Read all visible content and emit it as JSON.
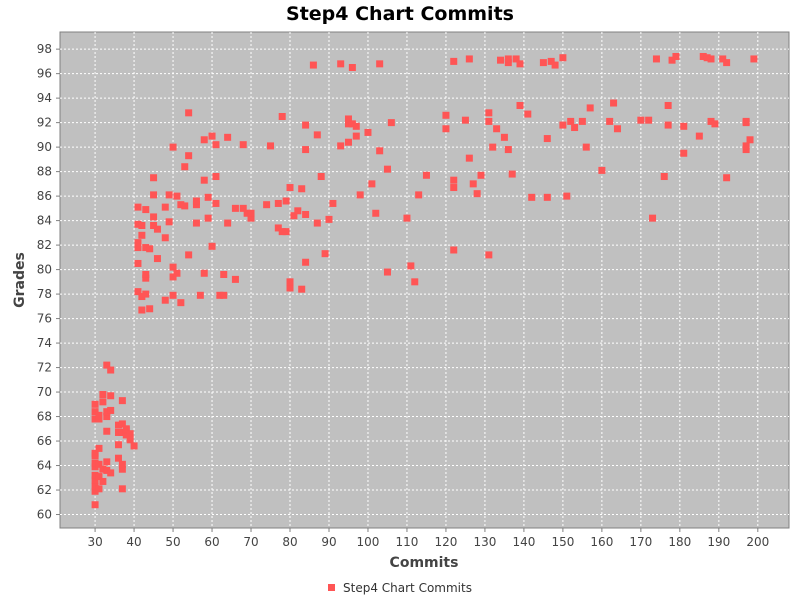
{
  "chart_data": {
    "type": "scatter",
    "title": "Step4 Chart Commits",
    "xlabel": "Commits",
    "ylabel": "Grades",
    "xlim": [
      21,
      208
    ],
    "ylim": [
      58.9,
      99.4
    ],
    "x_ticks": [
      30,
      40,
      50,
      60,
      70,
      80,
      90,
      100,
      110,
      120,
      130,
      140,
      150,
      160,
      170,
      180,
      190,
      200
    ],
    "y_ticks": [
      60,
      62,
      64,
      66,
      68,
      70,
      72,
      74,
      76,
      78,
      80,
      82,
      84,
      86,
      88,
      90,
      92,
      94,
      96,
      98
    ],
    "grid": true,
    "legend_position": "bottom",
    "colors": {
      "marker": "#ff5555",
      "plot_bg": "#c0c0c0",
      "grid": "#ffffff"
    },
    "series": [
      {
        "name": "Step4 Chart Commits",
        "points": [
          [
            30,
            60.8
          ],
          [
            30,
            61.9
          ],
          [
            30,
            62.3
          ],
          [
            30,
            62.8
          ],
          [
            30,
            63.2
          ],
          [
            30,
            63.9
          ],
          [
            30,
            64.2
          ],
          [
            30,
            64.8
          ],
          [
            30,
            65.0
          ],
          [
            30,
            67.8
          ],
          [
            30,
            68.4
          ],
          [
            30,
            69.0
          ],
          [
            31,
            62.1
          ],
          [
            31,
            63.1
          ],
          [
            31,
            64.1
          ],
          [
            31,
            65.4
          ],
          [
            31,
            67.8
          ],
          [
            31,
            68.1
          ],
          [
            32,
            62.7
          ],
          [
            32,
            63.7
          ],
          [
            32,
            69.2
          ],
          [
            32,
            69.8
          ],
          [
            33,
            63.6
          ],
          [
            33,
            64.3
          ],
          [
            33,
            66.8
          ],
          [
            33,
            68.0
          ],
          [
            33,
            68.4
          ],
          [
            33,
            72.2
          ],
          [
            34,
            63.4
          ],
          [
            34,
            68.5
          ],
          [
            34,
            69.7
          ],
          [
            34,
            71.8
          ],
          [
            36,
            64.6
          ],
          [
            36,
            65.7
          ],
          [
            36,
            66.7
          ],
          [
            36,
            67.3
          ],
          [
            37,
            62.1
          ],
          [
            37,
            63.7
          ],
          [
            37,
            64.1
          ],
          [
            37,
            66.7
          ],
          [
            37,
            67.4
          ],
          [
            37,
            69.3
          ],
          [
            38,
            66.5
          ],
          [
            38,
            66.9
          ],
          [
            38,
            67.0
          ],
          [
            39,
            66.1
          ],
          [
            39,
            66.6
          ],
          [
            40,
            65.6
          ],
          [
            41,
            78.2
          ],
          [
            41,
            80.5
          ],
          [
            41,
            81.8
          ],
          [
            41,
            82.2
          ],
          [
            41,
            83.7
          ],
          [
            41,
            85.1
          ],
          [
            42,
            76.7
          ],
          [
            42,
            77.8
          ],
          [
            42,
            82.8
          ],
          [
            42,
            83.6
          ],
          [
            43,
            78.0
          ],
          [
            43,
            79.3
          ],
          [
            43,
            79.6
          ],
          [
            43,
            81.8
          ],
          [
            43,
            84.9
          ],
          [
            44,
            76.8
          ],
          [
            44,
            81.7
          ],
          [
            45,
            84.3
          ],
          [
            45,
            83.6
          ],
          [
            45,
            86.1
          ],
          [
            45,
            87.5
          ],
          [
            46,
            80.9
          ],
          [
            46,
            83.3
          ],
          [
            48,
            77.5
          ],
          [
            48,
            82.6
          ],
          [
            48,
            85.1
          ],
          [
            49,
            83.9
          ],
          [
            49,
            86.1
          ],
          [
            50,
            77.9
          ],
          [
            50,
            79.4
          ],
          [
            50,
            80.2
          ],
          [
            50,
            90.0
          ],
          [
            51,
            79.7
          ],
          [
            51,
            86.0
          ],
          [
            52,
            77.3
          ],
          [
            52,
            85.3
          ],
          [
            53,
            85.2
          ],
          [
            53,
            88.4
          ],
          [
            54,
            81.2
          ],
          [
            54,
            89.3
          ],
          [
            54,
            92.8
          ],
          [
            56,
            83.8
          ],
          [
            56,
            85.3
          ],
          [
            56,
            85.6
          ],
          [
            57,
            77.9
          ],
          [
            58,
            79.7
          ],
          [
            58,
            87.3
          ],
          [
            58,
            90.6
          ],
          [
            59,
            84.2
          ],
          [
            59,
            85.9
          ],
          [
            60,
            81.9
          ],
          [
            60,
            90.9
          ],
          [
            61,
            85.4
          ],
          [
            61,
            87.6
          ],
          [
            61,
            90.2
          ],
          [
            62,
            77.9
          ],
          [
            63,
            77.9
          ],
          [
            63,
            79.6
          ],
          [
            64,
            83.8
          ],
          [
            64,
            90.8
          ],
          [
            66,
            79.2
          ],
          [
            66,
            85.0
          ],
          [
            68,
            85.0
          ],
          [
            68,
            90.2
          ],
          [
            69,
            84.6
          ],
          [
            70,
            84.2
          ],
          [
            70,
            84.6
          ],
          [
            74,
            85.3
          ],
          [
            75,
            90.1
          ],
          [
            77,
            83.4
          ],
          [
            77,
            85.4
          ],
          [
            78,
            83.1
          ],
          [
            78,
            92.5
          ],
          [
            79,
            83.1
          ],
          [
            79,
            85.6
          ],
          [
            80,
            78.5
          ],
          [
            80,
            79.0
          ],
          [
            80,
            86.7
          ],
          [
            81,
            84.4
          ],
          [
            82,
            84.8
          ],
          [
            83,
            78.4
          ],
          [
            83,
            86.6
          ],
          [
            84,
            80.6
          ],
          [
            84,
            84.5
          ],
          [
            84,
            89.8
          ],
          [
            84,
            91.8
          ],
          [
            86,
            96.7
          ],
          [
            87,
            83.8
          ],
          [
            87,
            91.0
          ],
          [
            88,
            87.6
          ],
          [
            89,
            81.3
          ],
          [
            90,
            84.1
          ],
          [
            91,
            85.4
          ],
          [
            93,
            90.1
          ],
          [
            93,
            96.8
          ],
          [
            95,
            90.4
          ],
          [
            95,
            91.9
          ],
          [
            95,
            92.3
          ],
          [
            96,
            91.9
          ],
          [
            96,
            96.5
          ],
          [
            97,
            90.9
          ],
          [
            97,
            91.7
          ],
          [
            98,
            86.1
          ],
          [
            100,
            91.2
          ],
          [
            101,
            87.0
          ],
          [
            102,
            84.6
          ],
          [
            103,
            89.7
          ],
          [
            103,
            96.8
          ],
          [
            105,
            79.8
          ],
          [
            105,
            88.2
          ],
          [
            106,
            92.0
          ],
          [
            110,
            84.2
          ],
          [
            111,
            80.3
          ],
          [
            112,
            79.0
          ],
          [
            113,
            86.1
          ],
          [
            115,
            87.7
          ],
          [
            120,
            91.5
          ],
          [
            120,
            92.6
          ],
          [
            122,
            81.6
          ],
          [
            122,
            86.7
          ],
          [
            122,
            87.3
          ],
          [
            122,
            97.0
          ],
          [
            125,
            92.2
          ],
          [
            126,
            89.1
          ],
          [
            126,
            97.2
          ],
          [
            127,
            87.0
          ],
          [
            128,
            86.2
          ],
          [
            129,
            87.7
          ],
          [
            131,
            81.2
          ],
          [
            131,
            92.1
          ],
          [
            131,
            92.8
          ],
          [
            132,
            90.0
          ],
          [
            133,
            91.5
          ],
          [
            134,
            97.1
          ],
          [
            135,
            90.8
          ],
          [
            136,
            89.8
          ],
          [
            136,
            96.9
          ],
          [
            136,
            97.2
          ],
          [
            137,
            87.8
          ],
          [
            138,
            97.2
          ],
          [
            139,
            93.4
          ],
          [
            139,
            96.8
          ],
          [
            141,
            92.7
          ],
          [
            142,
            85.9
          ],
          [
            145,
            96.9
          ],
          [
            146,
            85.9
          ],
          [
            146,
            90.7
          ],
          [
            147,
            97.0
          ],
          [
            148,
            96.7
          ],
          [
            150,
            91.8
          ],
          [
            150,
            97.3
          ],
          [
            151,
            86.0
          ],
          [
            152,
            92.1
          ],
          [
            153,
            91.6
          ],
          [
            155,
            92.1
          ],
          [
            156,
            90.0
          ],
          [
            157,
            93.2
          ],
          [
            160,
            88.1
          ],
          [
            162,
            92.1
          ],
          [
            163,
            93.6
          ],
          [
            164,
            91.5
          ],
          [
            170,
            92.2
          ],
          [
            172,
            92.2
          ],
          [
            173,
            84.2
          ],
          [
            174,
            97.2
          ],
          [
            176,
            87.6
          ],
          [
            177,
            91.8
          ],
          [
            177,
            93.4
          ],
          [
            178,
            97.1
          ],
          [
            179,
            97.4
          ],
          [
            181,
            89.5
          ],
          [
            181,
            91.7
          ],
          [
            185,
            90.9
          ],
          [
            186,
            97.4
          ],
          [
            187,
            97.3
          ],
          [
            188,
            92.1
          ],
          [
            188,
            97.2
          ],
          [
            189,
            91.9
          ],
          [
            191,
            97.2
          ],
          [
            192,
            87.5
          ],
          [
            192,
            96.9
          ],
          [
            197,
            89.8
          ],
          [
            197,
            90.1
          ],
          [
            197,
            92.0
          ],
          [
            197,
            92.1
          ],
          [
            198,
            90.6
          ],
          [
            199,
            97.2
          ]
        ]
      }
    ]
  }
}
